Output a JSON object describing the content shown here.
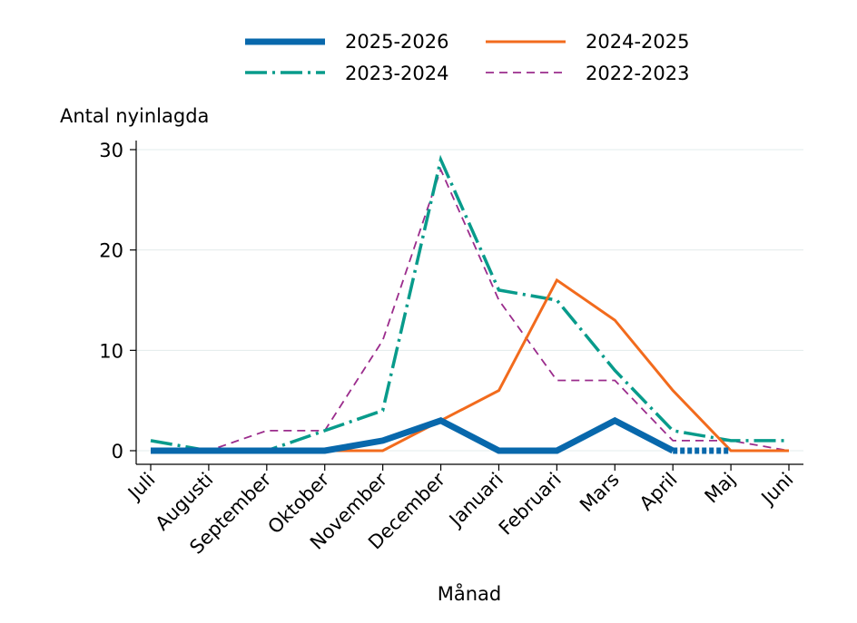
{
  "chart_data": {
    "type": "line",
    "xlabel": "Månad",
    "ylabel": "Antal nyinlagda",
    "categories": [
      "Juli",
      "Augusti",
      "September",
      "Oktober",
      "November",
      "December",
      "Januari",
      "Februari",
      "Mars",
      "April",
      "Maj",
      "Juni"
    ],
    "ylim": [
      0,
      30
    ],
    "yticks": [
      0,
      10,
      20,
      30
    ],
    "grid": true,
    "legend_position": "top",
    "series": [
      {
        "name": "2025-2026",
        "color": "#0868ac",
        "style": "solid-thick",
        "values": [
          0,
          0,
          0,
          0,
          1,
          3,
          0,
          0,
          3,
          0,
          0,
          null
        ],
        "dotted_from_index": 9
      },
      {
        "name": "2024-2025",
        "color": "#f26b1d",
        "style": "solid",
        "values": [
          null,
          null,
          null,
          0,
          0,
          3,
          6,
          17,
          13,
          6,
          0,
          0
        ]
      },
      {
        "name": "2023-2024",
        "color": "#089b8b",
        "style": "dash-dot",
        "values": [
          1,
          0,
          0,
          2,
          4,
          29,
          16,
          15,
          8,
          2,
          1,
          1
        ]
      },
      {
        "name": "2022-2023",
        "color": "#9b2c8c",
        "style": "dashed",
        "values": [
          0,
          0,
          2,
          2,
          11,
          28,
          15,
          7,
          7,
          1,
          1,
          0
        ]
      }
    ]
  }
}
